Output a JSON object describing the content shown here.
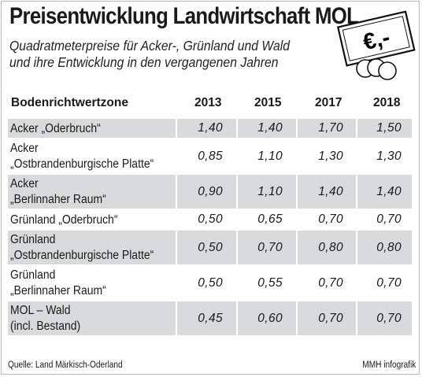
{
  "title": "Preisentwicklung Landwirtschaft MOL",
  "subtitle_line1": "Quadratmeterpreise für Acker-, Grünland und Wald",
  "subtitle_line2": "und ihre Entwicklung in den vergangenen Jahren",
  "icon": "euro-banknote-coins-icon",
  "money_label": "€,-",
  "source": "Quelle: Land Märkisch-Oderland",
  "credit": "MMH infografik",
  "colors": {
    "row_shade": "#d9dadb",
    "text": "#1a1a1a",
    "frame": "#b9b9b9"
  },
  "chart_data": {
    "type": "table",
    "columns": [
      "Bodenrichtwertzone",
      "2013",
      "2015",
      "2017",
      "2018"
    ],
    "rows": [
      {
        "label": [
          "Acker „Oderbruch“"
        ],
        "values": [
          "1,40",
          "1,40",
          "1,70",
          "1,50"
        ]
      },
      {
        "label": [
          "Acker",
          "„Ostbrandenburgische Platte“"
        ],
        "values": [
          "0,85",
          "1,10",
          "1,30",
          "1,30"
        ]
      },
      {
        "label": [
          "Acker",
          "„Berlinnaher Raum“"
        ],
        "values": [
          "0,90",
          "1,10",
          "1,40",
          "1,40"
        ]
      },
      {
        "label": [
          "Grünland „Oderbruch“"
        ],
        "values": [
          "0,50",
          "0,65",
          "0,70",
          "0,70"
        ]
      },
      {
        "label": [
          "Grünland",
          "„Ostbrandenburgische Platte“"
        ],
        "values": [
          "0,50",
          "0,70",
          "0,80",
          "0,80"
        ]
      },
      {
        "label": [
          "Grünland",
          "„Berlinnaher Raum“"
        ],
        "values": [
          "0,50",
          "0,55",
          "0,70",
          "0,70"
        ]
      },
      {
        "label": [
          "MOL – Wald",
          "(incl. Bestand)"
        ],
        "values": [
          "0,45",
          "0,60",
          "0,70",
          "0,70"
        ]
      }
    ]
  }
}
